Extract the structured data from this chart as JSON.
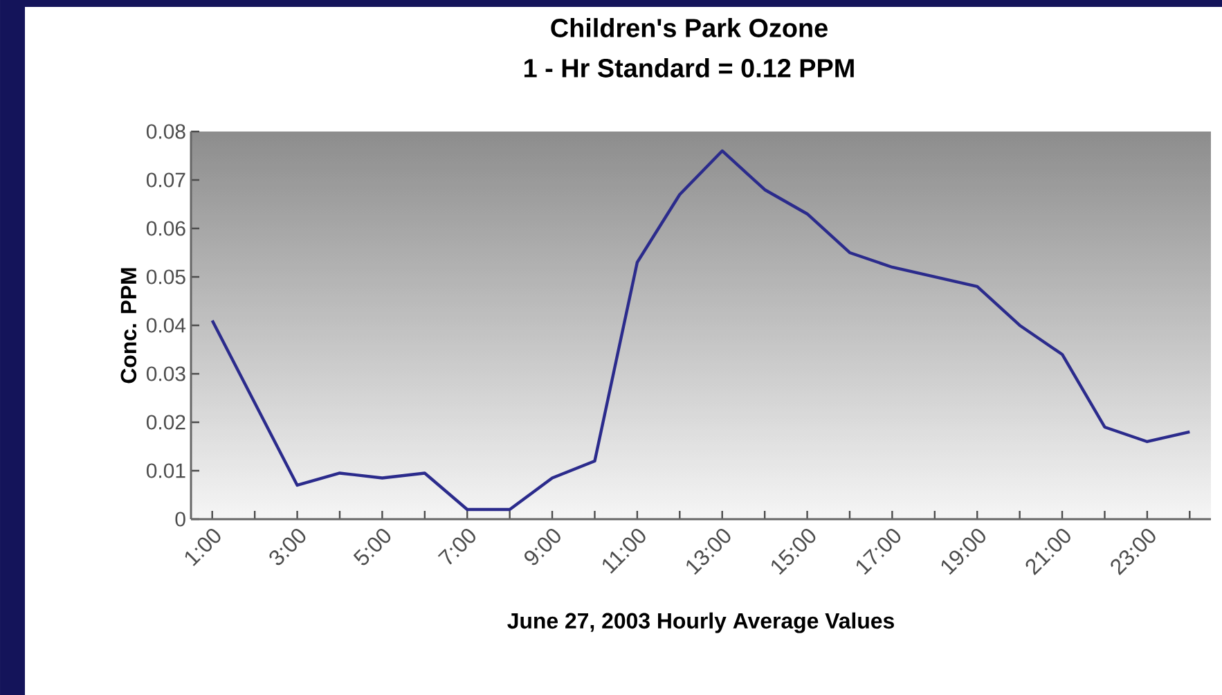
{
  "chart_data": {
    "type": "line",
    "title": "Children's Park Ozone",
    "subtitle": "1 - Hr Standard = 0.12 PPM",
    "xlabel": "June 27, 2003 Hourly Average Values",
    "ylabel": "Conc. PPM",
    "categories": [
      "1:00",
      null,
      "3:00",
      null,
      "5:00",
      null,
      "7:00",
      null,
      "9:00",
      null,
      "11:00",
      null,
      "13:00",
      null,
      "15:00",
      null,
      "17:00",
      null,
      "19:00",
      null,
      "21:00",
      null,
      "23:00",
      null
    ],
    "series": [
      {
        "color": "#2b2b8c",
        "values": [
          0.041,
          0.024,
          0.007,
          0.0095,
          0.0085,
          0.0095,
          0.002,
          0.002,
          0.0085,
          0.012,
          0.053,
          0.067,
          0.076,
          0.068,
          0.063,
          0.055,
          0.052,
          0.05,
          0.048,
          0.04,
          0.034,
          0.019,
          0.016,
          0.018
        ]
      }
    ],
    "ylim": [
      0,
      0.08
    ],
    "yticks": [
      0,
      0.01,
      0.02,
      0.03,
      0.04,
      0.05,
      0.06,
      0.07,
      0.08
    ],
    "grid": false,
    "marker": "none",
    "line_style": "solid"
  }
}
